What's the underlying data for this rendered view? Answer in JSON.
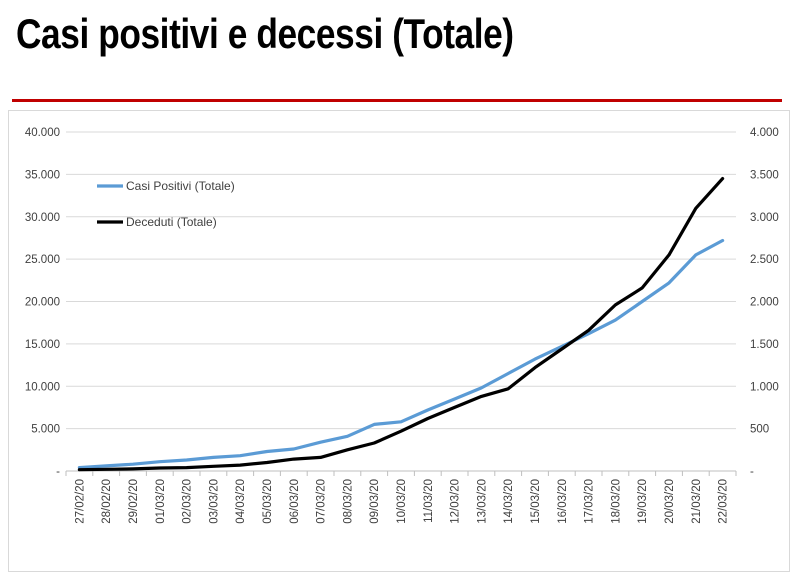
{
  "page": {
    "title": "Casi positivi e decessi (Totale)",
    "rule_color": "#c00000"
  },
  "chart_data": {
    "type": "line",
    "title": "",
    "x": [
      "27/02/20",
      "28/02/20",
      "29/02/20",
      "01/03/20",
      "02/03/20",
      "03/03/20",
      "04/03/20",
      "05/03/20",
      "06/03/20",
      "07/03/20",
      "08/03/20",
      "09/03/20",
      "10/03/20",
      "11/03/20",
      "12/03/20",
      "13/03/20",
      "14/03/20",
      "15/03/20",
      "16/03/20",
      "17/03/20",
      "18/03/20",
      "19/03/20",
      "20/03/20",
      "21/03/20",
      "22/03/20"
    ],
    "y_left": {
      "ylim": [
        0,
        40000
      ],
      "ticks": [
        0,
        5000,
        10000,
        15000,
        20000,
        25000,
        30000,
        35000,
        40000
      ],
      "tick_labels": [
        "-",
        "5.000",
        "10.000",
        "15.000",
        "20.000",
        "25.000",
        "30.000",
        "35.000",
        "40.000"
      ]
    },
    "y_right": {
      "ylim": [
        0,
        4000
      ],
      "ticks": [
        0,
        500,
        1000,
        1500,
        2000,
        2500,
        3000,
        3500,
        4000
      ],
      "tick_labels": [
        "-",
        "500",
        "1.000",
        "1.500",
        "2.000",
        "2.500",
        "3.000",
        "3.500",
        "4.000"
      ]
    },
    "grid": true,
    "legend_position": "top-left",
    "series": [
      {
        "name": "Casi Positivi (Totale)",
        "axis": "left",
        "color": "#5b9bd5",
        "values": [
          400,
          600,
          800,
          1100,
          1300,
          1600,
          1800,
          2300,
          2600,
          3400,
          4100,
          5500,
          5800,
          7200,
          8500,
          9800,
          11500,
          13200,
          14700,
          16200,
          17800,
          20000,
          22200,
          25500,
          27200
        ]
      },
      {
        "name": "Deceduti (Totale)",
        "axis": "right",
        "color": "#000000",
        "values": [
          15,
          20,
          25,
          35,
          40,
          55,
          70,
          100,
          140,
          160,
          250,
          330,
          470,
          620,
          750,
          880,
          970,
          1220,
          1440,
          1660,
          1960,
          2160,
          2550,
          3100,
          3450
        ]
      }
    ]
  }
}
